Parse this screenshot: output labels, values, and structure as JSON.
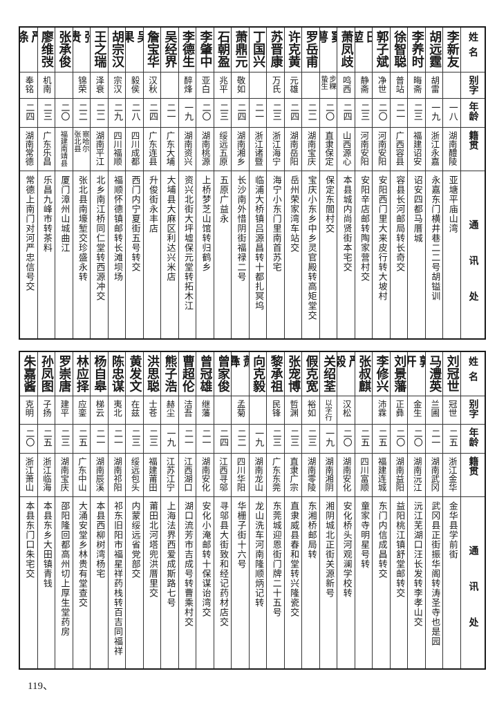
{
  "headers": {
    "name": "姓名",
    "alias": "别字",
    "age": "年龄",
    "native": "籍贯",
    "address": "通讯处"
  },
  "tables": [
    {
      "rows": [
        [
          "李新友",
          "",
          "一八",
          "湖南醴陵",
          "亚塘平庙山湾"
        ],
        [
          "胡远霆",
          "胡雷",
          "一九",
          "浙江永嘉",
          "永嘉东门横井巷二二号胡镒训"
        ],
        [
          "李养时",
          "晦斋",
          "二三",
          "福建诏安",
          "诏安四都马厝城"
        ],
        [
          "徐智聪",
          "普站",
          "二一",
          "广西容县",
          "容县长河邮局转长奇交"
        ],
        [
          "郭子斌",
          "净世",
          "二〇",
          "河南安阳",
          "安阳西门里大来皮行转大坡村"
        ],
        [
          "田堃",
          "静斋",
          "二三",
          "河南安阳",
          "安阳辛店邮转陶家营村交"
        ],
        [
          "萧凤歧",
          "鸣西",
          "二四",
          "山西源心",
          "本县城内尚贤街本宅交"
        ],
        [
          "窦萼",
          "步粿\n蛰生",
          "二〇",
          "直隶保定",
          "保定东閭村交"
        ],
        [
          "罗岳甫",
          "",
          "二二",
          "湖南宝庆",
          "宝庆小东乡中乡灵官殿转高矩堂交"
        ],
        [
          "许克黄",
          "元雄",
          "二四",
          "湖南岳阳",
          "岳州荣家湾车站交"
        ],
        [
          "苏晋康",
          "万氏",
          "二三",
          "浙江海宁",
          "海宁小东门里南首苏宅"
        ],
        [
          "丁国兴",
          "",
          "二一",
          "浙江诸暨",
          "临浦大桥镇吕源昌转十都扎冥坞"
        ],
        [
          "萧鼎元",
          "敬如",
          "二四",
          "湖南湘乡",
          "长沙南外惜阴街福禄二号"
        ],
        [
          "石朝盈",
          "兆平",
          "二三",
          "绥远五原",
          "五原广益永"
        ],
        [
          "李肇中",
          "亚白",
          "二〇",
          "湖南桃源",
          "上桥梦芝山馆转归鹤乡"
        ],
        [
          "李德生",
          "醉烽",
          "一九",
          "湖南资兴",
          "资兴北街大坪墟保元堂转拓木江"
        ],
        [
          "吴经界",
          "",
          "二一",
          "广东大埔",
          "大埔县大麻区利达兴米店"
        ],
        [
          "詹宝华",
          "汉秋",
          "二四",
          "广东连县",
          "升俊街永丰店"
        ],
        [
          "吴果",
          "毅侯",
          "二八",
          "四川成都",
          "西门内宁夏街五号转交"
        ],
        [
          "胡宗汉",
          "宗汉",
          "二九",
          "四川福顺",
          "福顺怀德镇邮转长滩坝场"
        ],
        [
          "王之瑞",
          "泽衰",
          "二二",
          "湖南平江",
          "北乡南江桥同仁堂转西源冲交"
        ],
        [
          "张贵",
          "锦荣",
          "二二",
          "察哈尔\n张北县",
          "张北县南壕堑交珍盛永转"
        ],
        [
          "张承俊",
          "",
          "二〇",
          "福建南靖县",
          "厦门漳州山城曲江"
        ],
        [
          "廖维弢",
          "机南",
          "二三",
          "广东乐昌",
          "乐昌九峰市转茶料"
        ],
        [
          "严涤",
          "奉铭",
          "二四",
          "湖南常德",
          "常德上南门对河严忠信号交"
        ]
      ]
    },
    {
      "rows": [
        [
          "刘冠世",
          "冠世",
          "二五",
          "浙江金华",
          "金华县学前街"
        ],
        [
          "马澧英",
          "兰圃",
          "二一",
          "湖南武冈",
          "武冈县正街振华阁转涛圣寺也是园"
        ],
        [
          "郭开",
          "金生",
          "二〇",
          "湖南沅江",
          "沅江芜湖口汪长发转李孝山交"
        ],
        [
          "刘景藩",
          "正彝",
          "二〇",
          "湖南益阳",
          "益阳桃江镇舒堂邮转交"
        ],
        [
          "李修兴",
          "沛霖",
          "二五",
          "福建连城",
          "东门内信成昌转交"
        ],
        [
          "张叔麒",
          "",
          "二五",
          "四川富顺",
          "童家寺明星号转"
        ],
        [
          "严毅",
          "汉松",
          "二〇",
          "湖南安化",
          "安化桥头河观澜学校转"
        ],
        [
          "关绍荃",
          "以字行",
          "一九",
          "湖南湘阴",
          "湘阴城北正街关源新号"
        ],
        [
          "假克宽",
          "裕如",
          "二三",
          "湖南零陵",
          "东湘桥邮局转"
        ],
        [
          "张宠博",
          "哲渊",
          "二三",
          "直隶广宗",
          "直隶威县春和堂转兴隆瓷交"
        ],
        [
          "黎承祖",
          "民锋",
          "二三",
          "广东东莞",
          "东莞城迎恩街门牌二十五号"
        ],
        [
          "向克毅",
          "",
          "一九",
          "湖南龙山",
          "龙山洗车河南隆顺炳记转"
        ],
        [
          "萧彝",
          "孟菊",
          "二二",
          "四川华阳",
          "华栅子街十六号"
        ],
        [
          "曾家俊",
          "",
          "二四",
          "江西寻邬",
          "寻邬县大街致和经记药材店交"
        ],
        [
          "曾冠雄",
          "继藩",
          "二一",
          "湖南安化",
          "安化小淹邮转十保谋诒湾交"
        ],
        [
          "曹超伦",
          "洁吾",
          "二一",
          "江西湖口",
          "湖口流芳市吉成号转曹乘村交"
        ],
        [
          "熊子浩",
          "赫尘",
          "一九",
          "江苏江宁",
          "上海法界西爱成斯路七号"
        ],
        [
          "洪思聪",
          "士苍",
          "二三",
          "福建莆田",
          "莆田北河塔兜洪厝里交"
        ],
        [
          "黄发文",
          "在兹",
          "二三",
          "绥远包头",
          "内蒙绥远省党部交"
        ],
        [
          "陈忠谋",
          "夷北",
          "二一",
          "湖南祁阳",
          "祁东旧阳市福星祥药栈转百吉同福祥"
        ],
        [
          "杨自皋",
          "梯云",
          "二一",
          "湖南辰溪",
          "本县西柳树湾杨宅"
        ],
        [
          "林应择",
          "应銮",
          "二五",
          "广东中山",
          "大涌安堂乡林贵有堂查交"
        ],
        [
          "罗崇唐",
          "建平",
          "二三",
          "湖南宝庆",
          "邵阳隆回都高州切上厚生堂药房"
        ],
        [
          "孙凤图",
          "子扬",
          "二五",
          "浙江临海",
          "本县东乡大田镇青钱"
        ],
        [
          "朱嘉酱",
          "克明",
          "二〇",
          "浙江萧山",
          "本县东门口朱宅交"
        ]
      ]
    }
  ],
  "page_number": "119、"
}
